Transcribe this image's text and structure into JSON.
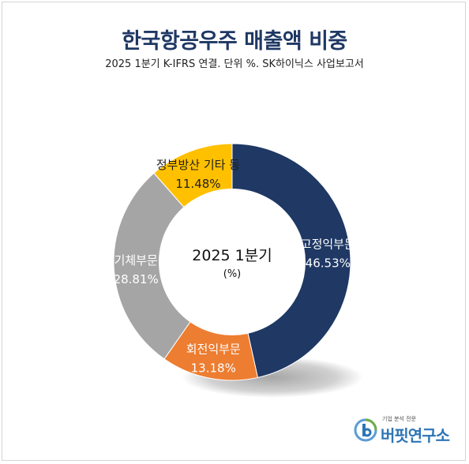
{
  "chart_data": {
    "type": "pie",
    "title": "한국항공우주 매출액 비중",
    "subtitle": "2025 1분기 K-IFRS 연결. 단위 %. SK하이닉스 사업보고서",
    "center_label": "2025 1분기",
    "center_unit": "(%)",
    "slices": [
      {
        "name": "고정익부문",
        "value": 46.53,
        "label": "46.53%",
        "color": "#1f3864",
        "text_color": "#ffffff"
      },
      {
        "name": "회전익부문",
        "value": 13.18,
        "label": "13.18%",
        "color": "#ed7d31",
        "text_color": "#ffffff"
      },
      {
        "name": "기체부문",
        "value": 28.81,
        "label": "28.81%",
        "color": "#a5a5a5",
        "text_color": "#ffffff"
      },
      {
        "name": "정부방산 기타 등",
        "value": 11.48,
        "label": "11.48%",
        "color": "#ffc000",
        "text_color": "#1f1f1f"
      }
    ]
  },
  "logo": {
    "tagline": "기업 분석 전문",
    "name": "버핏연구소",
    "icon": "buffett-lab-logo-icon"
  }
}
